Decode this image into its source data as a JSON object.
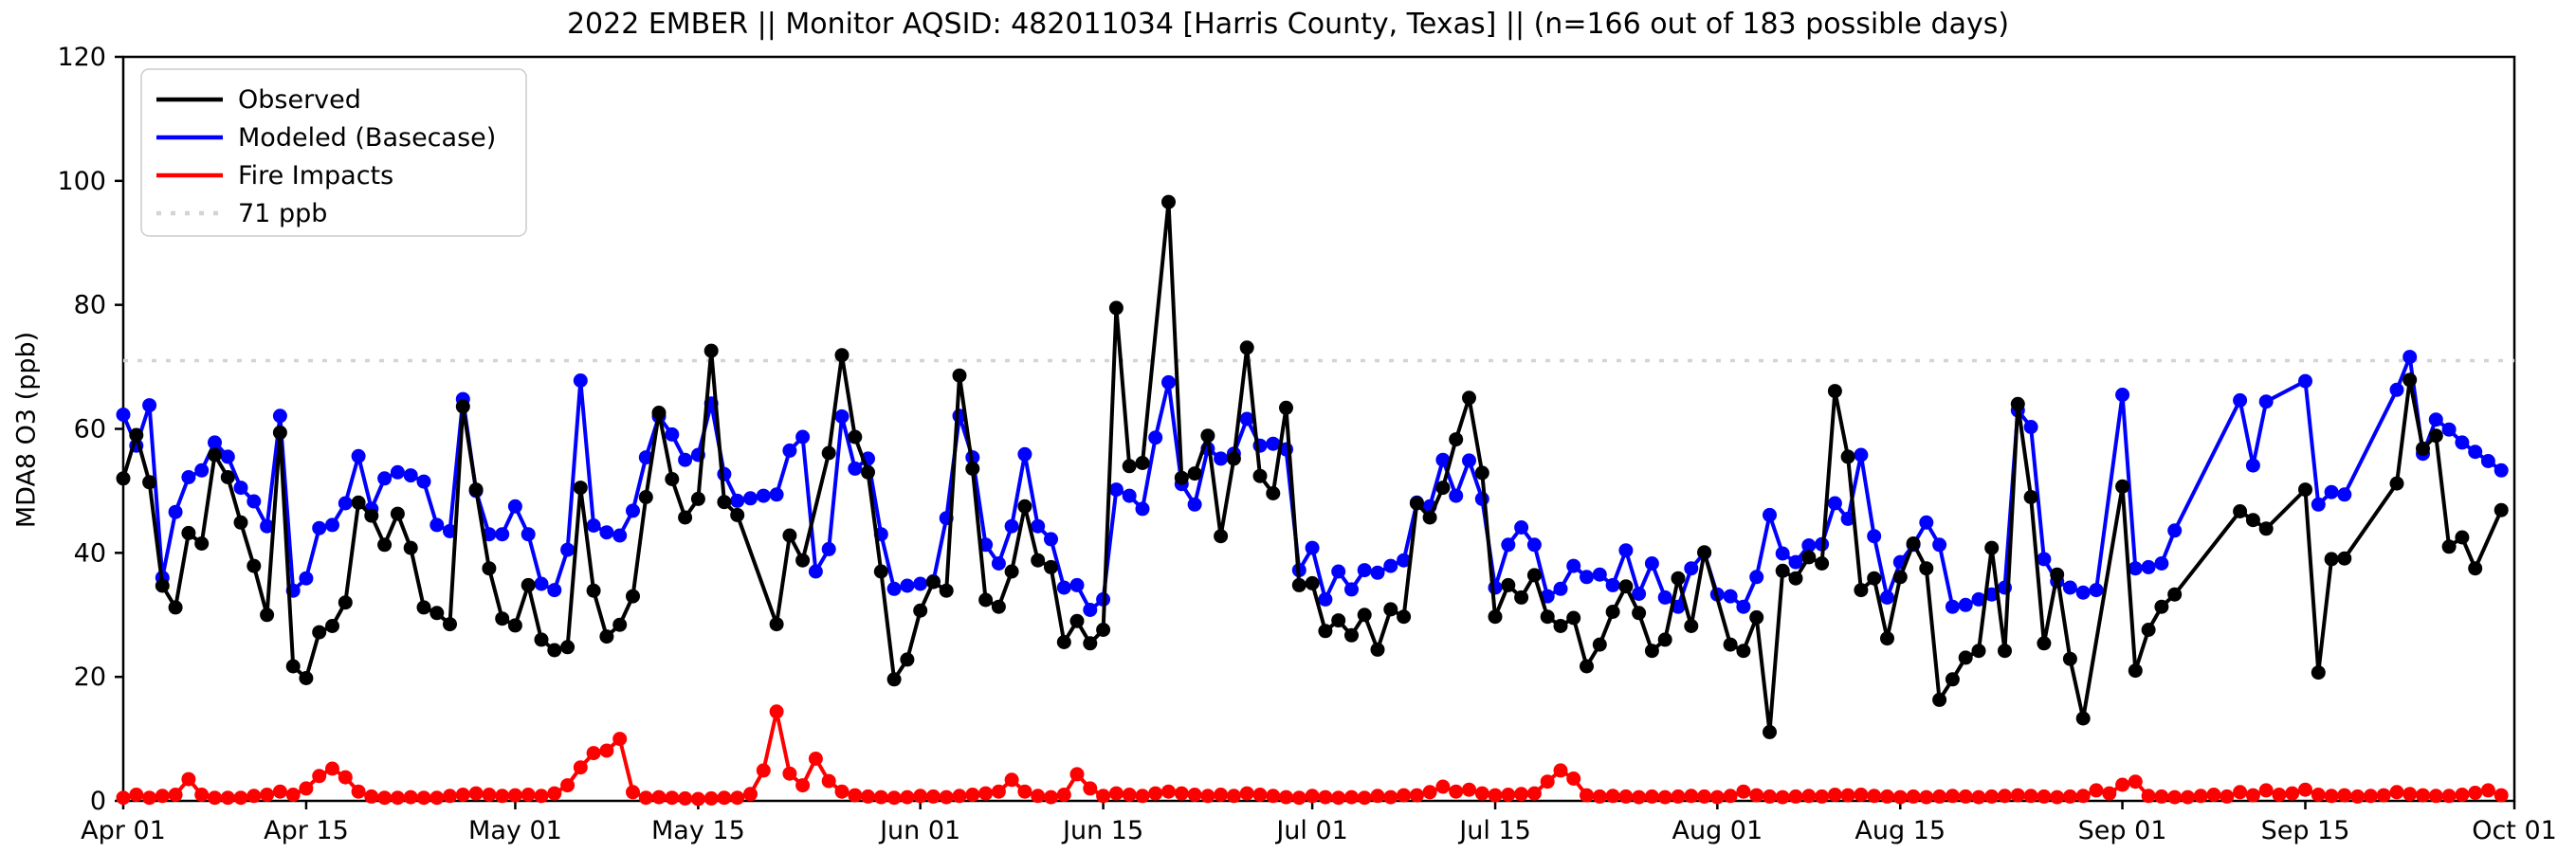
{
  "title": "2022 EMBER || Monitor AQSID: 482011034 [Harris County, Texas] || (n=166 out of 183 possible days)",
  "y_axis": {
    "label": "MDA8 O3 (ppb)",
    "ticks": [
      0,
      20,
      40,
      60,
      80,
      100,
      120
    ],
    "range": [
      0,
      120
    ]
  },
  "x_axis": {
    "tick_labels": [
      "Apr 01",
      "Apr 15",
      "May 01",
      "May 15",
      "Jun 01",
      "Jun 15",
      "Jul 01",
      "Jul 15",
      "Aug 01",
      "Aug 15",
      "Sep 01",
      "Sep 15",
      "Oct 01"
    ],
    "tick_days": [
      0,
      14,
      30,
      44,
      61,
      75,
      91,
      105,
      122,
      136,
      153,
      167,
      183
    ]
  },
  "legend": [
    {
      "label": "Observed",
      "color": "#000000",
      "style": "solid"
    },
    {
      "label": "Modeled (Basecase)",
      "color": "#0000ff",
      "style": "solid"
    },
    {
      "label": "Fire Impacts",
      "color": "#ff0000",
      "style": "solid"
    },
    {
      "label": "71 ppb",
      "color": "#d3d3d3",
      "style": "dotted"
    }
  ],
  "threshold": {
    "value": 71,
    "label": "71 ppb",
    "color": "#d3d3d3"
  },
  "chart_data": {
    "type": "line",
    "start_date": "2022-04-01",
    "end_date": "2022-09-30",
    "n_days": 183,
    "xlim_days": [
      0,
      183
    ],
    "ylim": [
      0,
      120
    ],
    "grid": false,
    "legend_position": "upper-left",
    "series": [
      {
        "name": "Observed",
        "color": "#000000",
        "values": [
          52,
          59,
          51.4,
          34.7,
          31.2,
          43.2,
          41.5,
          55.8,
          52.2,
          44.9,
          37.9,
          30,
          59.4,
          21.7,
          19.8,
          27.2,
          28.2,
          32,
          48.1,
          46,
          41.3,
          46.3,
          40.8,
          31.2,
          30.3,
          28.5,
          63.6,
          50.2,
          37.5,
          29.4,
          28.3,
          34.8,
          26,
          24.3,
          24.8,
          50.5,
          33.9,
          26.5,
          28.4,
          33,
          49,
          62.6,
          51.9,
          45.7,
          48.7,
          72.6,
          48.2,
          46.1,
          null,
          null,
          28.5,
          42.8,
          38.8,
          null,
          56.1,
          71.9,
          58.7,
          53,
          37,
          19.6,
          22.8,
          30.7,
          35.3,
          33.9,
          68.6,
          53.6,
          32.4,
          31.3,
          37,
          47.5,
          38.8,
          37.7,
          25.6,
          29,
          25.4,
          27.6,
          79.5,
          54,
          54.5,
          null,
          96.6,
          52.1,
          52.8,
          58.9,
          42.7,
          55.2,
          73.1,
          52.4,
          49.6,
          63.4,
          34.8,
          35.1,
          27.4,
          29.1,
          26.7,
          30,
          24.4,
          30.9,
          29.7,
          48,
          45.7,
          50.5,
          58.3,
          65,
          52.9,
          29.7,
          34.8,
          32.8,
          36.4,
          29.7,
          28.2,
          29.5,
          21.7,
          25.2,
          30.5,
          34.6,
          30.3,
          24.2,
          26,
          35.9,
          28.2,
          40.1,
          null,
          25.2,
          24.2,
          29.6,
          11.1,
          37.1,
          35.9,
          39.3,
          38.3,
          66.1,
          55.5,
          34,
          35.9,
          26.2,
          36.1,
          41.5,
          37.5,
          16.3,
          19.6,
          23.1,
          24.2,
          40.8,
          24.2,
          64,
          49,
          25.4,
          36.5,
          22.9,
          13.3,
          null,
          null,
          50.7,
          21,
          27.6,
          31.3,
          33.3,
          null,
          null,
          null,
          null,
          46.7,
          45.3,
          43.9,
          null,
          null,
          50.2,
          20.7,
          39,
          39.1,
          null,
          null,
          null,
          51.2,
          67.9,
          56.8,
          58.9,
          41,
          42.5,
          37.5,
          null,
          46.9
        ]
      },
      {
        "name": "Modeled (Basecase)",
        "color": "#0000ff",
        "values": [
          62.3,
          57.3,
          63.8,
          36,
          46.6,
          52.2,
          53.3,
          57.8,
          55.5,
          50.5,
          48.3,
          44.3,
          62.1,
          33.9,
          35.9,
          44,
          44.5,
          48,
          55.6,
          47.1,
          52,
          53,
          52.5,
          51.5,
          44.5,
          43.5,
          64.8,
          50,
          43,
          43,
          47.5,
          43,
          35,
          34,
          40.5,
          67.8,
          44.4,
          43.3,
          42.8,
          46.8,
          55.4,
          62,
          59.1,
          55,
          55.8,
          64.1,
          52.7,
          48.4,
          48.8,
          49.2,
          49.4,
          56.5,
          58.7,
          37,
          40.6,
          62,
          53.6,
          55.2,
          43,
          34.2,
          34.7,
          35,
          35.4,
          45.6,
          62.1,
          55.4,
          41.3,
          38.3,
          44.3,
          55.9,
          44.3,
          42.2,
          34.4,
          34.8,
          30.8,
          32.5,
          50.2,
          49.2,
          47.1,
          58.6,
          67.5,
          51.1,
          47.8,
          56.8,
          55.2,
          56,
          61.6,
          57.3,
          57.6,
          56.7,
          37.2,
          40.8,
          32.5,
          37,
          34.1,
          37.2,
          36.8,
          37.9,
          38.8,
          48.1,
          47.5,
          55,
          49.2,
          54.9,
          48.7,
          34.4,
          41.3,
          44.1,
          41.3,
          33,
          34.2,
          37.9,
          36.1,
          36.5,
          34.8,
          40.4,
          33.4,
          38.3,
          32.8,
          31.3,
          37.5,
          40,
          33.3,
          33,
          31.3,
          36.1,
          46.1,
          39.9,
          38.5,
          41.2,
          41.4,
          48,
          45.5,
          55.8,
          42.7,
          32.8,
          38.5,
          41.3,
          44.9,
          41.3,
          31.3,
          31.6,
          32.5,
          33.3,
          34.4,
          63,
          60.3,
          39,
          35.4,
          34.4,
          33.6,
          34,
          null,
          65.5,
          37.5,
          37.7,
          38.3,
          43.6,
          null,
          null,
          null,
          null,
          64.6,
          54.1,
          64.4,
          null,
          null,
          67.7,
          47.8,
          49.8,
          49.4,
          null,
          null,
          null,
          66.3,
          71.6,
          56,
          61.5,
          59.9,
          57.8,
          56.3,
          54.8,
          53.3
        ]
      },
      {
        "name": "Fire Impacts",
        "color": "#ff0000",
        "values": [
          0.5,
          1,
          0.5,
          0.8,
          1,
          3.5,
          1,
          0.5,
          0.5,
          0.5,
          0.8,
          1,
          1.5,
          1,
          2,
          4,
          5.2,
          3.8,
          1.5,
          0.7,
          0.5,
          0.5,
          0.6,
          0.5,
          0.5,
          0.8,
          1,
          1.2,
          1,
          0.8,
          0.9,
          1,
          0.8,
          1.2,
          2.5,
          5.4,
          7.7,
          8.1,
          10,
          1.4,
          0.5,
          0.6,
          0.5,
          0.4,
          0.3,
          0.4,
          0.5,
          0.5,
          1.1,
          4.9,
          14.4,
          4.4,
          2.5,
          6.8,
          3.2,
          1.5,
          0.9,
          0.7,
          0.6,
          0.5,
          0.6,
          0.8,
          0.7,
          0.6,
          0.8,
          1,
          1.2,
          1.5,
          3.4,
          1.5,
          0.8,
          0.6,
          1,
          4.3,
          2,
          0.8,
          1.2,
          1,
          0.8,
          1.2,
          1.5,
          1.2,
          1,
          0.8,
          1,
          0.8,
          1.2,
          1,
          0.8,
          0.6,
          0.5,
          0.8,
          0.6,
          0.5,
          0.6,
          0.5,
          0.8,
          0.6,
          0.9,
          0.9,
          1.4,
          2.3,
          1.5,
          1.8,
          1.2,
          0.9,
          1,
          1.1,
          1.2,
          3.1,
          4.9,
          3.6,
          0.9,
          0.7,
          0.8,
          0.7,
          0.6,
          0.7,
          0.6,
          0.7,
          0.8,
          0.7,
          0.6,
          0.8,
          1.5,
          0.9,
          0.7,
          0.6,
          0.7,
          0.8,
          0.7,
          1,
          0.9,
          1,
          0.8,
          0.7,
          0.6,
          0.7,
          0.6,
          0.7,
          0.8,
          0.7,
          0.6,
          0.7,
          0.8,
          0.9,
          0.8,
          0.7,
          0.6,
          0.7,
          0.8,
          1.7,
          1.2,
          2.6,
          3.1,
          0.8,
          0.7,
          0.6,
          0.6,
          0.8,
          1,
          0.7,
          1.4,
          0.9,
          1.7,
          1,
          1.2,
          1.8,
          1,
          0.8,
          0.9,
          0.7,
          0.8,
          0.9,
          1.4,
          1.1,
          0.9,
          0.8,
          0.8,
          1,
          1.3,
          1.7,
          0.9
        ]
      }
    ],
    "threshold_line": {
      "value": 71,
      "label": "71 ppb"
    }
  }
}
